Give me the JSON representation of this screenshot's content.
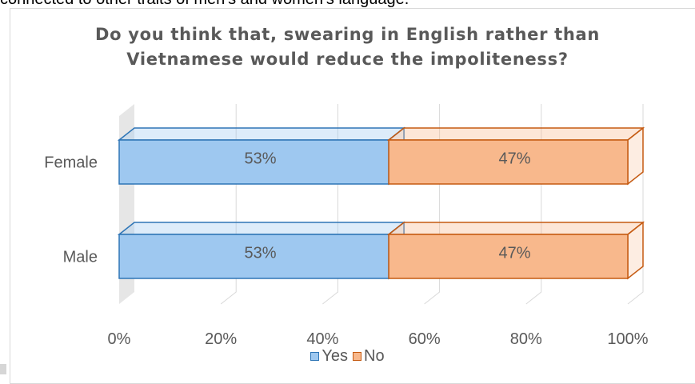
{
  "document": {
    "top_text": "connected to other traits of men's and women's language."
  },
  "chart_data": {
    "type": "bar",
    "orientation": "horizontal",
    "stacked": "percent",
    "three_d": true,
    "title": [
      "Do you think that, swearing in English rather than",
      "Vietnamese would reduce the impoliteness?"
    ],
    "categories": [
      "Female",
      "Male"
    ],
    "series": [
      {
        "name": "Yes",
        "values": [
          53,
          53
        ],
        "labels": [
          "53%",
          "53%"
        ],
        "color": "#9ec8f0",
        "edge": "#2e75b6"
      },
      {
        "name": "No",
        "values": [
          47,
          47
        ],
        "labels": [
          "47%",
          "47%"
        ],
        "color": "#f8b88c",
        "edge": "#c55a11"
      }
    ],
    "xlim": [
      0,
      100
    ],
    "xticks": [
      "0%",
      "20%",
      "40%",
      "60%",
      "80%",
      "100%"
    ],
    "xlabel": "",
    "ylabel": "",
    "grid": true,
    "legend_position": "bottom",
    "label_color": "#595959",
    "grid_color": "#d9d9d9",
    "wall_color": "#e6e6e6"
  }
}
